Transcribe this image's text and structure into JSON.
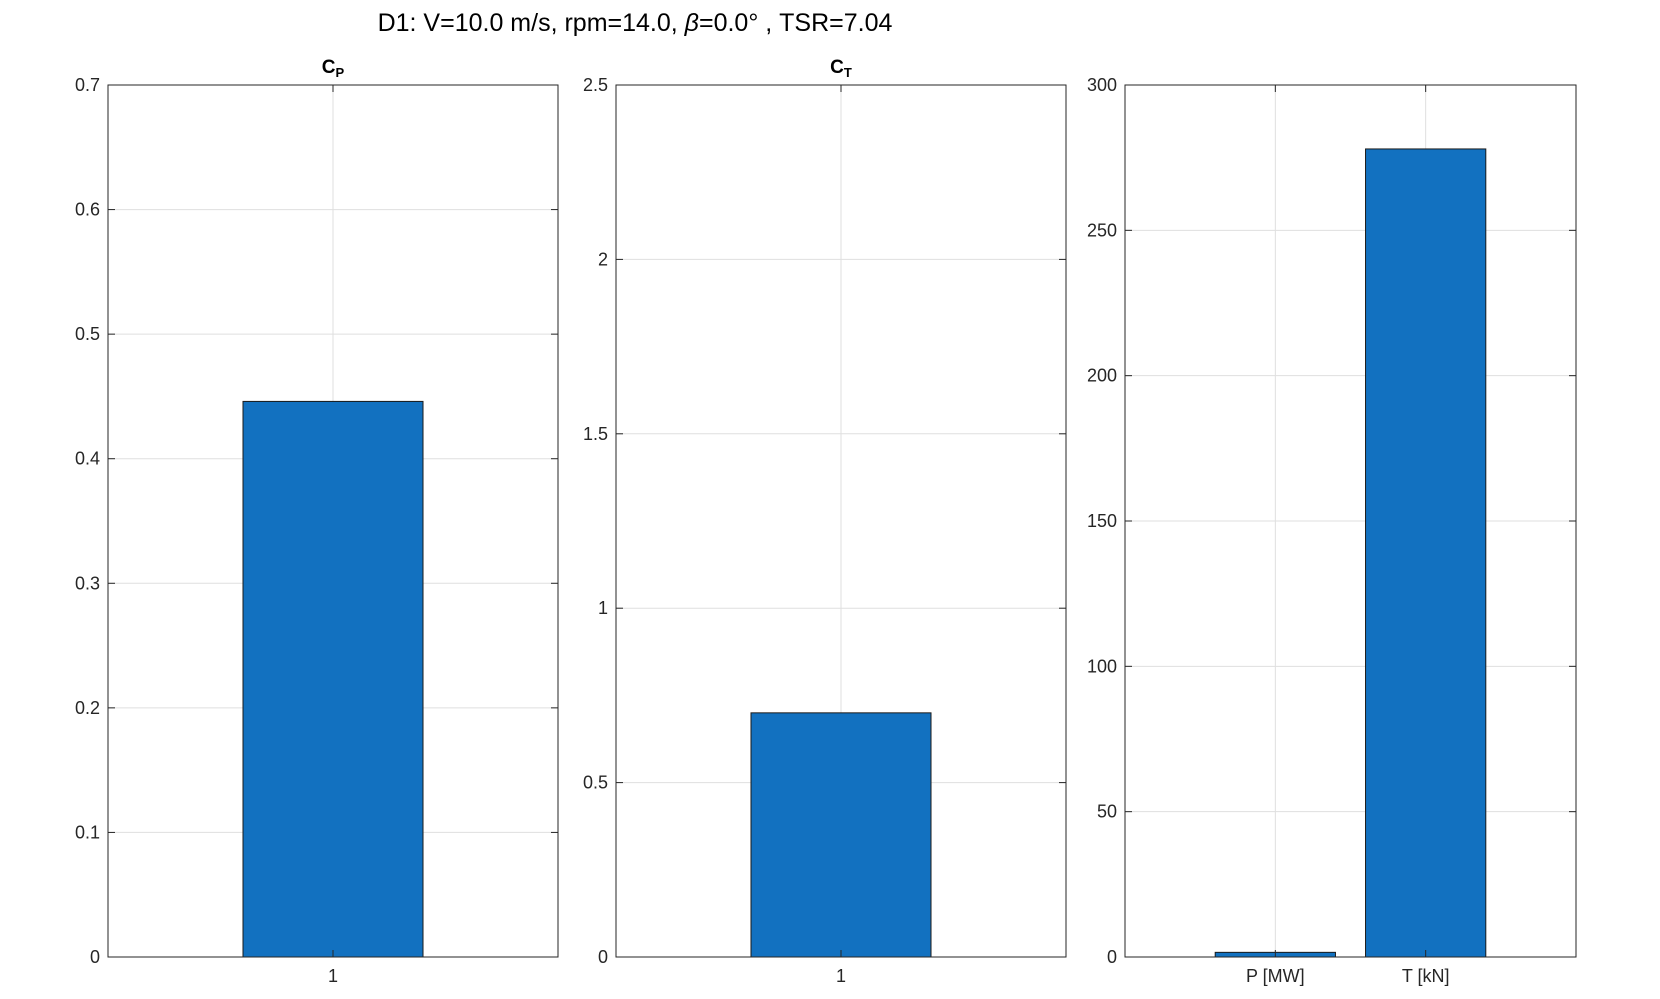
{
  "figure": {
    "title_prefix": "D1:  V=10.0  m/s,  rpm=14.0,  ",
    "title_beta_symbol": "β",
    "title_suffix": "=0.0°  ,  TSR=7.04"
  },
  "colors": {
    "bar": "#1271c0",
    "bar_edge": "#1a1a1a",
    "grid": "#dfdfdf",
    "axis": "#262626"
  },
  "chart_data": [
    {
      "type": "bar",
      "title_main": "C",
      "title_sub": "P",
      "categories": [
        "1"
      ],
      "values": [
        0.446
      ],
      "ylim": [
        0,
        0.7
      ],
      "yticks": [
        0,
        0.1,
        0.2,
        0.3,
        0.4,
        0.5,
        0.6,
        0.7
      ],
      "ytick_labels": [
        "0",
        "0.1",
        "0.2",
        "0.3",
        "0.4",
        "0.5",
        "0.6",
        "0.7"
      ],
      "grid": true
    },
    {
      "type": "bar",
      "title_main": "C",
      "title_sub": "T",
      "categories": [
        "1"
      ],
      "values": [
        0.7
      ],
      "ylim": [
        0,
        2.5
      ],
      "yticks": [
        0,
        0.5,
        1,
        1.5,
        2,
        2.5
      ],
      "ytick_labels": [
        "0",
        "0.5",
        "1",
        "1.5",
        "2",
        "2.5"
      ],
      "grid": true
    },
    {
      "type": "bar",
      "title_main": "",
      "title_sub": "",
      "categories": [
        "P [MW]",
        "T [kN]"
      ],
      "values": [
        1.6,
        278
      ],
      "ylim": [
        0,
        300
      ],
      "yticks": [
        0,
        50,
        100,
        150,
        200,
        250,
        300
      ],
      "ytick_labels": [
        "0",
        "50",
        "100",
        "150",
        "200",
        "250",
        "300"
      ],
      "grid": true
    }
  ]
}
